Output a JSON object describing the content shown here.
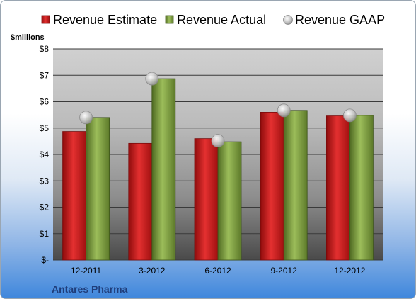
{
  "chart_data": {
    "type": "bar",
    "categories": [
      "12-2011",
      "3-2012",
      "6-2012",
      "9-2012",
      "12-2012"
    ],
    "series": [
      {
        "name": "Revenue Estimate",
        "type": "bar",
        "color": "#d42020",
        "values": [
          4.87,
          4.42,
          4.6,
          5.6,
          5.46
        ]
      },
      {
        "name": "Revenue Actual",
        "type": "bar",
        "color": "#7a9a3c",
        "values": [
          5.4,
          6.87,
          4.48,
          5.67,
          5.48
        ]
      },
      {
        "name": "Revenue GAAP",
        "type": "marker",
        "color": "#c8c8c8",
        "values": [
          5.4,
          6.87,
          4.52,
          5.67,
          5.48
        ]
      }
    ],
    "ylabel": "$millions",
    "ylim": [
      0,
      8
    ],
    "yticks": [
      0,
      1,
      2,
      3,
      4,
      5,
      6,
      7,
      8
    ],
    "ytick_labels": [
      "$-",
      "$1",
      "$2",
      "$3",
      "$4",
      "$5",
      "$6",
      "$7",
      "$8"
    ],
    "grid": true,
    "legend_position": "top"
  },
  "company_name": "Antares Pharma"
}
